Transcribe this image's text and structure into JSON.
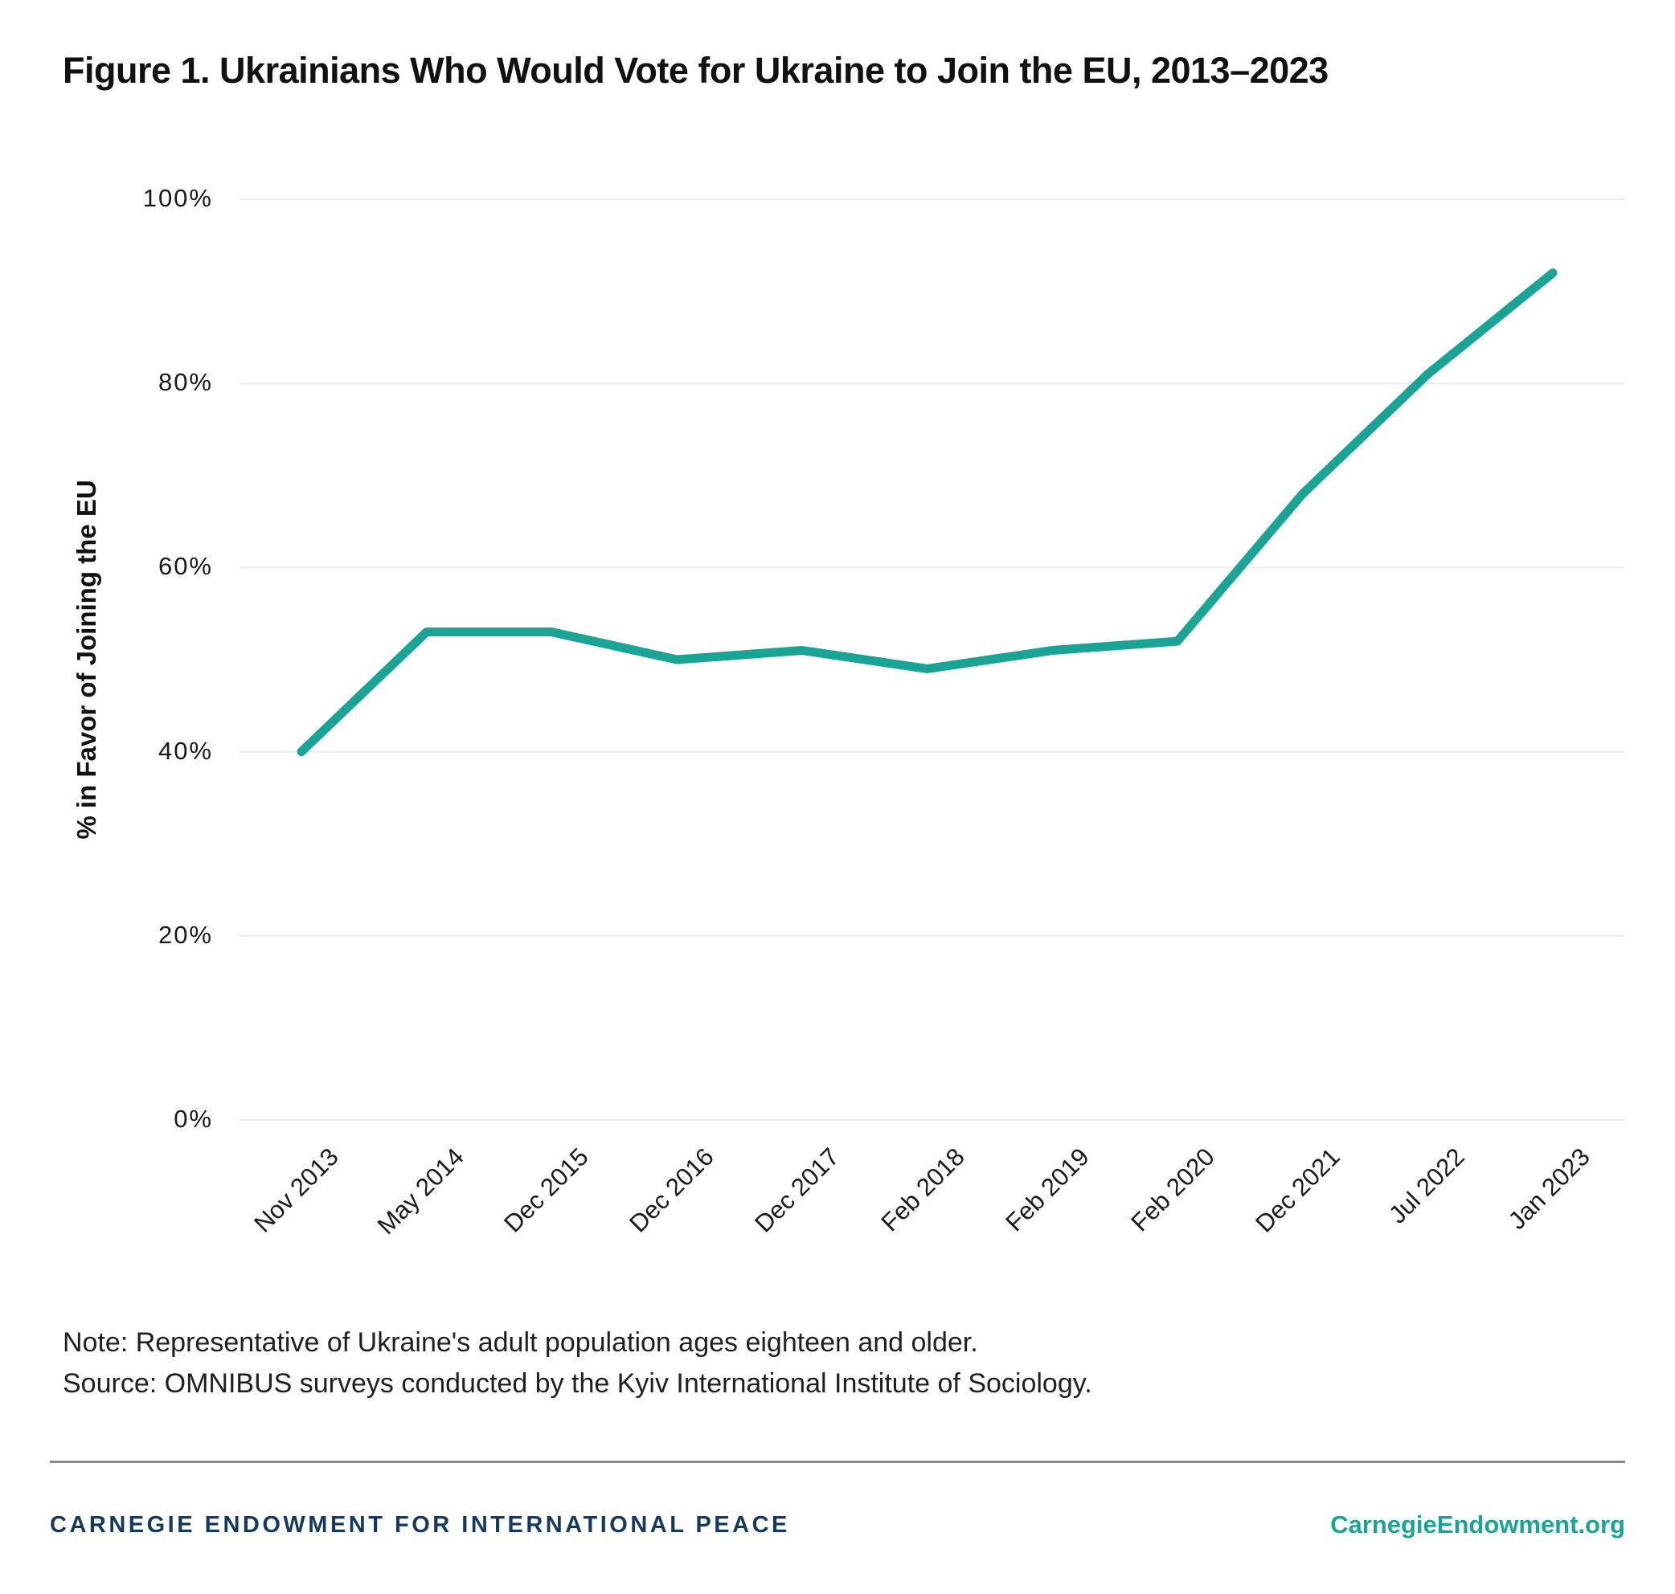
{
  "title": "Figure 1. Ukrainians Who Would Vote for Ukraine to Join the EU, 2013–2023",
  "chart_data": {
    "type": "line",
    "categories": [
      "Nov 2013",
      "May 2014",
      "Dec 2015",
      "Dec 2016",
      "Dec 2017",
      "Feb 2018",
      "Feb 2019",
      "Feb 2020",
      "Dec 2021",
      "Jul 2022",
      "Jan 2023"
    ],
    "values": [
      40,
      53,
      53,
      50,
      51,
      49,
      51,
      52,
      68,
      81,
      92
    ],
    "series_name": "Ukrainians in favor of joining the EU",
    "title": "Figure 1. Ukrainians Who Would Vote for Ukraine to Join the EU, 2013–2023",
    "xlabel": "",
    "ylabel": "% in Favor of Joining the EU",
    "ylim": [
      0,
      100
    ],
    "yticks": [
      0,
      20,
      40,
      60,
      80,
      100
    ],
    "ytick_labels": [
      "0%",
      "20%",
      "40%",
      "60%",
      "80%",
      "100%"
    ],
    "grid": "horizontal",
    "legend": "none"
  },
  "notes": [
    "Note: Representative of Ukraine's adult population ages eighteen and older.",
    "Source: OMNIBUS surveys conducted by the Kyiv International Institute of Sociology."
  ],
  "footer": {
    "left": "CARNEGIE ENDOWMENT FOR INTERNATIONAL PEACE",
    "right": "CarnegieEndowment.org"
  },
  "colors": {
    "accent_teal": "#1AA496",
    "brand_navy": "#163A5F",
    "grid_gray": "#EBEBEB",
    "divider_gray": "#8A8A8A",
    "title_text": "#111111",
    "tick_text": "#1A1A1A"
  }
}
